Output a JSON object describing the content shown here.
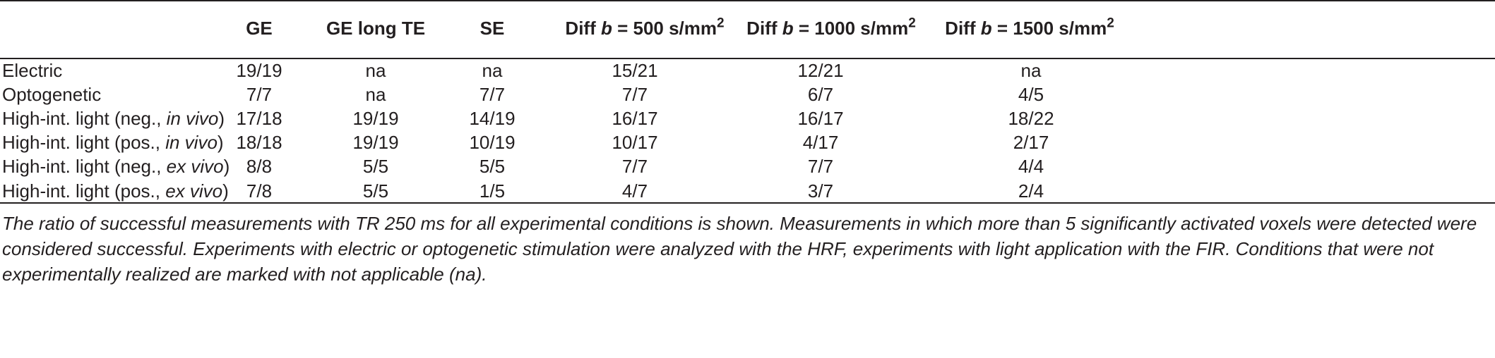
{
  "table": {
    "columns": [
      {
        "label": "GE"
      },
      {
        "label": "GE long TE"
      },
      {
        "label": "SE"
      },
      {
        "pre": "Diff ",
        "b": "b",
        "mid": " = 500 s/mm",
        "sup": "2"
      },
      {
        "pre": "Diff ",
        "b": "b",
        "mid": " = 1000 s/mm",
        "sup": "2"
      },
      {
        "pre": "Diff ",
        "b": "b",
        "mid": " = 1500 s/mm",
        "sup": "2"
      }
    ],
    "rows": [
      {
        "label": "Electric",
        "label_pre": "",
        "label_em": "",
        "label_post": "",
        "values": [
          "19/19",
          "na",
          "na",
          "15/21",
          "12/21",
          "na"
        ]
      },
      {
        "label": "Optogenetic",
        "label_pre": "",
        "label_em": "",
        "label_post": "",
        "values": [
          "7/7",
          "na",
          "7/7",
          "7/7",
          "6/7",
          "4/5"
        ]
      },
      {
        "label": "",
        "label_pre": "High-int. light (neg., ",
        "label_em": "in vivo",
        "label_post": ")",
        "values": [
          "17/18",
          "19/19",
          "14/19",
          "16/17",
          "16/17",
          "18/22"
        ]
      },
      {
        "label": "",
        "label_pre": "High-int. light (pos., ",
        "label_em": "in vivo",
        "label_post": ")",
        "values": [
          "18/18",
          "19/19",
          "10/19",
          "10/17",
          "4/17",
          "2/17"
        ]
      },
      {
        "label": "",
        "label_pre": "High-int. light (neg., ",
        "label_em": "ex vivo",
        "label_post": ")",
        "values": [
          "8/8",
          "5/5",
          "5/5",
          "7/7",
          "7/7",
          "4/4"
        ]
      },
      {
        "label": "",
        "label_pre": "High-int. light (pos., ",
        "label_em": "ex vivo",
        "label_post": ")",
        "values": [
          "7/8",
          "5/5",
          "1/5",
          "4/7",
          "3/7",
          "2/4"
        ]
      }
    ]
  },
  "caption": "The ratio of successful measurements with TR 250 ms for all experimental conditions is shown. Measurements in which more than 5 significantly activated voxels were detected were considered successful. Experiments with electric or optogenetic stimulation were analyzed with the HRF, experiments with light application with the FIR. Conditions that were not experimentally realized are marked with not applicable (na)."
}
